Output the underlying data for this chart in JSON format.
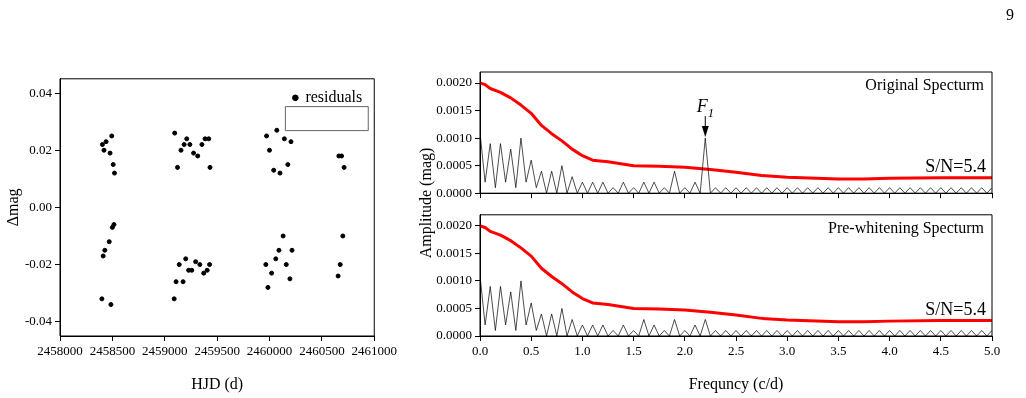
{
  "chart_data": [
    {
      "type": "scatter",
      "xlabel": "HJD (d)",
      "ylabel": "Δmag",
      "legend": "top right",
      "marker": "circle",
      "annotations": [
        "9"
      ],
      "xlim": [
        2458000,
        2461000
      ],
      "xticks": [
        2458000,
        2458500,
        2459000,
        2459500,
        2460000,
        2460500,
        2461000
      ],
      "ylim": [
        -0.045,
        0.045
      ],
      "yticks": [
        -0.04,
        -0.02,
        {
          "value": 0,
          "label": "0.00"
        },
        0.02,
        0.04
      ],
      "series": [
        {
          "name": "residuals",
          "color": "#000000",
          "x": [
            2458400,
            2458405,
            2458412,
            2458420,
            2458428,
            2458440,
            2458470,
            2458478,
            2458486,
            2458494,
            2458500,
            2458508,
            2458515,
            2458520,
            2459090,
            2459095,
            2459108,
            2459122,
            2459138,
            2459155,
            2459175,
            2459185,
            2459200,
            2459210,
            2459228,
            2459240,
            2459258,
            2459275,
            2459295,
            2459315,
            2459335,
            2459355,
            2459372,
            2459385,
            2459405,
            2459420,
            2459428,
            2459432,
            2459965,
            2459972,
            2459985,
            2460000,
            2460020,
            2460040,
            2460060,
            2460070,
            2460090,
            2460100,
            2460130,
            2460142,
            2460160,
            2460175,
            2460195,
            2460205,
            2460215,
            2460655,
            2460662,
            2460675,
            2460688,
            2460700,
            2460712
          ],
          "values": [
            -0.032,
            0.022,
            -0.017,
            0.02,
            -0.015,
            0.023,
            -0.012,
            0.019,
            -0.034,
            0.025,
            -0.007,
            0.015,
            -0.006,
            0.012,
            -0.032,
            0.026,
            -0.026,
            0.014,
            -0.02,
            0.02,
            -0.026,
            0.022,
            -0.018,
            0.024,
            -0.022,
            0.022,
            -0.022,
            0.019,
            -0.019,
            0.018,
            -0.02,
            0.022,
            -0.023,
            0.024,
            -0.022,
            0.024,
            -0.02,
            0.014,
            -0.02,
            0.025,
            -0.028,
            0.02,
            -0.023,
            0.013,
            -0.018,
            0.027,
            -0.015,
            0.012,
            -0.01,
            0.024,
            -0.02,
            0.015,
            -0.025,
            0.023,
            -0.015,
            -0.024,
            0.018,
            -0.02,
            0.018,
            -0.01,
            0.014
          ]
        }
      ]
    },
    {
      "type": "line",
      "marker": "none",
      "tick_labels": "y",
      "annotations": [
        "Original Specturm",
        "S/N=5.4",
        {
          "text": "F$_{1}$",
          "x": 2.2,
          "y": 0.001
        }
      ],
      "xlim": [
        0,
        5
      ],
      "xticks": [
        0,
        0.5,
        1,
        1.5,
        2,
        2.5,
        3,
        3.5,
        4,
        4.5,
        5
      ],
      "ylim": [
        0,
        0.0022
      ],
      "yticks": [
        {
          "value": 0,
          "label": "0.0000"
        },
        0.0005,
        {
          "value": 0.001,
          "label": "0.0010"
        },
        0.0015,
        {
          "value": 0.002,
          "label": "0.0020"
        }
      ],
      "series": [
        {
          "color": "#000000",
          "x": [
            0,
            0.05,
            0.1,
            0.15,
            0.2,
            0.25,
            0.3,
            0.35,
            0.4,
            0.45,
            0.5,
            0.55,
            0.6,
            0.65,
            0.7,
            0.75,
            0.8,
            0.85,
            0.9,
            0.95,
            1,
            1.05,
            1.1,
            1.15,
            1.2,
            1.25,
            1.3,
            1.35,
            1.4,
            1.45,
            1.5,
            1.55,
            1.6,
            1.65,
            1.7,
            1.75,
            1.8,
            1.85,
            1.9,
            1.95,
            2,
            2.05,
            2.1,
            2.15,
            2.2,
            2.25,
            2.3,
            2.35,
            2.4,
            2.45,
            2.5,
            2.55,
            2.6,
            2.65,
            2.7,
            2.75,
            2.8,
            2.85,
            2.9,
            2.95,
            3,
            3.05,
            3.1,
            3.15,
            3.2,
            3.25,
            3.3,
            3.35,
            3.4,
            3.45,
            3.5,
            3.55,
            3.6,
            3.65,
            3.7,
            3.75,
            3.8,
            3.85,
            3.9,
            3.95,
            4,
            4.05,
            4.1,
            4.15,
            4.2,
            4.25,
            4.3,
            4.35,
            4.4,
            4.45,
            4.5,
            4.55,
            4.6,
            4.65,
            4.7,
            4.75,
            4.8,
            4.85,
            4.9,
            4.95,
            5
          ],
          "values": [
            0.0011,
            0.0002,
            0.0009,
            0.0001,
            0.0009,
            0.0002,
            0.0008,
            0.0001,
            0.001,
            0.0002,
            0.0006,
            0.0001,
            0.0004,
            0,
            0.0004,
            0,
            0.0005,
            0,
            0.0003,
            0,
            0.0002,
            0,
            0.0002,
            0,
            0.0002,
            0,
            0.0001,
            0,
            0.0002,
            0,
            0.0001,
            0,
            0.0002,
            0,
            0.0002,
            0,
            0.0001,
            0,
            0.0004,
            0,
            0.0001,
            0,
            0.0002,
            0,
            0.001,
            0,
            0.0001,
            0,
            0.0001,
            0,
            0.0001,
            0,
            0.0001,
            0,
            0.0001,
            0,
            0.0001,
            0,
            0.0001,
            0,
            0.0001,
            0,
            0.0001,
            0,
            0.0001,
            0,
            0.0001,
            0,
            0.0001,
            0,
            0.0001,
            0,
            0.0001,
            0,
            0.0001,
            0,
            0.0001,
            0,
            0.0001,
            0,
            0.0001,
            0,
            0.0001,
            0,
            0.0001,
            0,
            0.0001,
            0,
            0.0001,
            0,
            0.0001,
            0,
            0.0001,
            0,
            0.0001,
            0,
            0.0001,
            0,
            0.0001,
            0,
            0.0001
          ]
        },
        {
          "color": "#ff0000",
          "x": [
            0,
            0.05,
            0.1,
            0.2,
            0.3,
            0.4,
            0.5,
            0.6,
            0.7,
            0.8,
            0.9,
            1,
            1.1,
            1.25,
            1.5,
            1.75,
            2,
            2.25,
            2.5,
            2.75,
            3,
            3.5,
            3.75,
            4,
            4.5,
            5
          ],
          "values": [
            0.002,
            0.00197,
            0.0019,
            0.00183,
            0.00173,
            0.0016,
            0.00145,
            0.00123,
            0.00108,
            0.00095,
            0.0008,
            0.00068,
            0.0006,
            0.00057,
            0.0005,
            0.00049,
            0.00047,
            0.00043,
            0.00038,
            0.00032,
            0.00029,
            0.00026,
            0.00026,
            0.00027,
            0.00028,
            0.00028
          ]
        }
      ]
    },
    {
      "type": "line",
      "marker": "none",
      "xlabel": "Frequncy (c/d)",
      "ylabel": "Amplitude (mag)",
      "annotations": [
        "Pre-whitening Specturm",
        "S/N=5.4"
      ],
      "xlim": [
        0,
        5
      ],
      "xticks": [
        {
          "value": 0,
          "label": "0.0"
        },
        0.5,
        {
          "value": 1,
          "label": "1.0"
        },
        1.5,
        {
          "value": 2,
          "label": "2.0"
        },
        2.5,
        {
          "value": 3,
          "label": "3.0"
        },
        3.5,
        {
          "value": 4,
          "label": "4.0"
        },
        4.5,
        {
          "value": 5,
          "label": "5.0"
        }
      ],
      "ylim": [
        0,
        0.0022
      ],
      "yticks": [
        {
          "value": 0,
          "label": "0.0000"
        },
        0.0005,
        {
          "value": 0.001,
          "label": "0.0010"
        },
        0.0015,
        {
          "value": 0.002,
          "label": "0.0020"
        }
      ],
      "series": [
        {
          "color": "#000000",
          "x": [
            0,
            0.05,
            0.1,
            0.15,
            0.2,
            0.25,
            0.3,
            0.35,
            0.4,
            0.45,
            0.5,
            0.55,
            0.6,
            0.65,
            0.7,
            0.75,
            0.8,
            0.85,
            0.9,
            0.95,
            1,
            1.05,
            1.1,
            1.15,
            1.2,
            1.25,
            1.3,
            1.35,
            1.4,
            1.45,
            1.5,
            1.55,
            1.6,
            1.65,
            1.7,
            1.75,
            1.8,
            1.85,
            1.9,
            1.95,
            2,
            2.05,
            2.1,
            2.15,
            2.2,
            2.25,
            2.3,
            2.35,
            2.4,
            2.45,
            2.5,
            2.55,
            2.6,
            2.65,
            2.7,
            2.75,
            2.8,
            2.85,
            2.9,
            2.95,
            3,
            3.05,
            3.1,
            3.15,
            3.2,
            3.25,
            3.3,
            3.35,
            3.4,
            3.45,
            3.5,
            3.55,
            3.6,
            3.65,
            3.7,
            3.75,
            3.8,
            3.85,
            3.9,
            3.95,
            4,
            4.05,
            4.1,
            4.15,
            4.2,
            4.25,
            4.3,
            4.35,
            4.4,
            4.45,
            4.5,
            4.55,
            4.6,
            4.65,
            4.7,
            4.75,
            4.8,
            4.85,
            4.9,
            4.95,
            5
          ],
          "values": [
            0.0011,
            0.0002,
            0.0009,
            0.0001,
            0.0009,
            0.0002,
            0.0008,
            0.0001,
            0.001,
            0.0002,
            0.0006,
            0.0001,
            0.0004,
            0,
            0.0004,
            0,
            0.0005,
            0,
            0.0003,
            0,
            0.0002,
            0,
            0.0002,
            0,
            0.0002,
            0,
            0.0001,
            0,
            0.0002,
            0,
            0.0001,
            0,
            0.0003,
            0,
            0.0002,
            0,
            0.0001,
            0,
            0.0003,
            0,
            0.0001,
            0,
            0.0002,
            0,
            0.0003,
            0,
            0.0001,
            0,
            0.0001,
            0,
            0.0001,
            0,
            0.0001,
            0,
            0.0001,
            0,
            0.0001,
            0,
            0.0001,
            0,
            0.0001,
            0,
            0.0001,
            0,
            0.0001,
            0,
            0.0001,
            0,
            0.0001,
            0,
            0.0001,
            0,
            0.0001,
            0,
            0.0001,
            0,
            0.0001,
            0,
            0.0001,
            0,
            0.0001,
            0,
            0.0001,
            0,
            0.0001,
            0,
            0.0001,
            0,
            0.0001,
            0,
            0.0001,
            0,
            0.0001,
            0,
            0.0001,
            0,
            0.0001,
            0,
            0.0001,
            0,
            0.0001
          ]
        },
        {
          "color": "#ff0000",
          "x": [
            0,
            0.05,
            0.1,
            0.2,
            0.3,
            0.4,
            0.5,
            0.6,
            0.7,
            0.8,
            0.9,
            1,
            1.1,
            1.25,
            1.5,
            1.75,
            2,
            2.25,
            2.5,
            2.75,
            3,
            3.5,
            3.75,
            4,
            4.5,
            5
          ],
          "values": [
            0.002,
            0.00197,
            0.0019,
            0.00183,
            0.00173,
            0.0016,
            0.00145,
            0.00123,
            0.00108,
            0.00095,
            0.0008,
            0.00068,
            0.0006,
            0.00057,
            0.0005,
            0.00049,
            0.00047,
            0.00043,
            0.00038,
            0.00032,
            0.00029,
            0.00026,
            0.00026,
            0.00027,
            0.00028,
            0.00028
          ]
        }
      ]
    }
  ]
}
